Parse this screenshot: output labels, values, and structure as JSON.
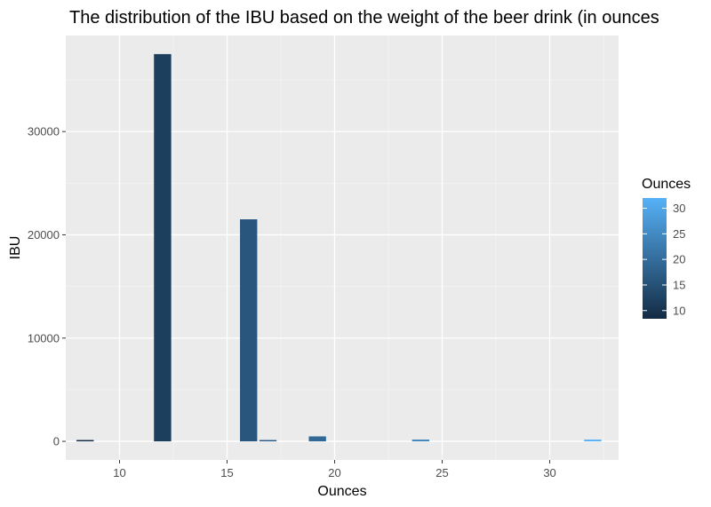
{
  "chart_data": {
    "type": "bar",
    "title": "The distribution of the IBU based on the weight of the beer drink (in ounces",
    "xlabel": "Ounces",
    "ylabel": "IBU",
    "xlim": [
      7.5,
      33.2
    ],
    "ylim": [
      -1800,
      39300
    ],
    "x_ticks": [
      10,
      15,
      20,
      25,
      30
    ],
    "y_ticks": [
      0,
      10000,
      20000,
      30000
    ],
    "grid": true,
    "legend": {
      "title": "Ounces",
      "placement": "right",
      "type": "colorbar",
      "range": [
        8.4,
        32
      ],
      "ticks": [
        10,
        15,
        20,
        25,
        30
      ],
      "color_low": "#132b43",
      "color_high": "#56b1f7"
    },
    "series": [
      {
        "x": [
          8.4,
          12,
          16,
          16.9,
          19.2,
          24,
          32
        ],
        "values": [
          60,
          37500,
          21500,
          60,
          480,
          170,
          170
        ]
      }
    ],
    "bar_width": 0.8
  },
  "colors": {
    "panel_background": "#ebebeb",
    "grid_major": "#ffffff",
    "grid_minor": "#f5f5f5",
    "tick_text": "#4d4d4d"
  }
}
